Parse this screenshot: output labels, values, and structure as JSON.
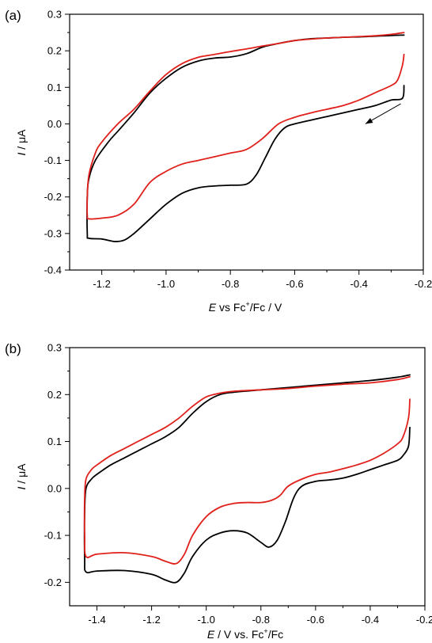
{
  "chart_data": [
    {
      "type": "line",
      "panel_label": "(a)",
      "xlabel_italic": "E",
      "xlabel_a": " vs Fc",
      "xlabel_sup": "+",
      "xlabel_b": "/Fc / V",
      "ylabel_italic": "I",
      "ylabel_rest": " / μA",
      "xlim": [
        -1.3,
        -0.2
      ],
      "ylim": [
        -0.4,
        0.3
      ],
      "x_ticks": [
        -1.2,
        -1.0,
        -0.8,
        -0.6,
        -0.4,
        -0.2
      ],
      "x_tick_labels": [
        "-1.2",
        "-1.0",
        "-0.8",
        "-0.6",
        "-0.4",
        "-0.2"
      ],
      "y_ticks": [
        0.3,
        0.2,
        0.1,
        0.0,
        -0.1,
        -0.2,
        -0.3,
        -0.4
      ],
      "y_tick_labels": [
        "0.3",
        "0.2",
        "0.1",
        "0.0",
        "-0.1",
        "-0.2",
        "-0.3",
        "-0.4"
      ],
      "arrow": {
        "from": [
          -0.27,
          0.055
        ],
        "to": [
          -0.38,
          0.0
        ]
      },
      "series": [
        {
          "color": "#000000",
          "points": [
            [
              -0.26,
              0.105
            ],
            [
              -0.265,
              0.07
            ],
            [
              -0.3,
              0.065
            ],
            [
              -0.35,
              0.05
            ],
            [
              -0.4,
              0.04
            ],
            [
              -0.45,
              0.03
            ],
            [
              -0.5,
              0.02
            ],
            [
              -0.55,
              0.01
            ],
            [
              -0.6,
              0.0
            ],
            [
              -0.63,
              -0.01
            ],
            [
              -0.66,
              -0.04
            ],
            [
              -0.69,
              -0.09
            ],
            [
              -0.72,
              -0.14
            ],
            [
              -0.75,
              -0.165
            ],
            [
              -0.8,
              -0.168
            ],
            [
              -0.85,
              -0.17
            ],
            [
              -0.9,
              -0.175
            ],
            [
              -0.95,
              -0.19
            ],
            [
              -1.0,
              -0.22
            ],
            [
              -1.05,
              -0.26
            ],
            [
              -1.1,
              -0.3
            ],
            [
              -1.13,
              -0.318
            ],
            [
              -1.16,
              -0.322
            ],
            [
              -1.2,
              -0.315
            ],
            [
              -1.24,
              -0.313
            ],
            [
              -1.245,
              -0.3
            ],
            [
              -1.245,
              -0.2
            ],
            [
              -1.24,
              -0.15
            ],
            [
              -1.22,
              -0.1
            ],
            [
              -1.18,
              -0.05
            ],
            [
              -1.15,
              -0.02
            ],
            [
              -1.1,
              0.03
            ],
            [
              -1.05,
              0.085
            ],
            [
              -1.0,
              0.125
            ],
            [
              -0.95,
              0.155
            ],
            [
              -0.9,
              0.172
            ],
            [
              -0.85,
              0.18
            ],
            [
              -0.8,
              0.183
            ],
            [
              -0.75,
              0.192
            ],
            [
              -0.7,
              0.21
            ],
            [
              -0.65,
              0.22
            ],
            [
              -0.6,
              0.228
            ],
            [
              -0.55,
              0.233
            ],
            [
              -0.5,
              0.235
            ],
            [
              -0.45,
              0.237
            ],
            [
              -0.4,
              0.238
            ],
            [
              -0.35,
              0.24
            ],
            [
              -0.3,
              0.242
            ],
            [
              -0.26,
              0.243
            ]
          ]
        },
        {
          "color": "#e0201b",
          "points": [
            [
              -0.26,
              0.19
            ],
            [
              -0.265,
              0.16
            ],
            [
              -0.28,
              0.12
            ],
            [
              -0.3,
              0.105
            ],
            [
              -0.35,
              0.085
            ],
            [
              -0.4,
              0.065
            ],
            [
              -0.45,
              0.05
            ],
            [
              -0.5,
              0.04
            ],
            [
              -0.55,
              0.03
            ],
            [
              -0.6,
              0.018
            ],
            [
              -0.65,
              0.0
            ],
            [
              -0.7,
              -0.04
            ],
            [
              -0.75,
              -0.07
            ],
            [
              -0.8,
              -0.08
            ],
            [
              -0.85,
              -0.09
            ],
            [
              -0.9,
              -0.1
            ],
            [
              -0.95,
              -0.11
            ],
            [
              -1.0,
              -0.13
            ],
            [
              -1.05,
              -0.16
            ],
            [
              -1.1,
              -0.22
            ],
            [
              -1.15,
              -0.25
            ],
            [
              -1.2,
              -0.258
            ],
            [
              -1.24,
              -0.26
            ],
            [
              -1.245,
              -0.25
            ],
            [
              -1.245,
              -0.2
            ],
            [
              -1.24,
              -0.14
            ],
            [
              -1.22,
              -0.08
            ],
            [
              -1.2,
              -0.05
            ],
            [
              -1.15,
              0.0
            ],
            [
              -1.1,
              0.04
            ],
            [
              -1.05,
              0.09
            ],
            [
              -1.0,
              0.135
            ],
            [
              -0.95,
              0.165
            ],
            [
              -0.9,
              0.182
            ],
            [
              -0.85,
              0.19
            ],
            [
              -0.8,
              0.198
            ],
            [
              -0.75,
              0.205
            ],
            [
              -0.7,
              0.213
            ],
            [
              -0.65,
              0.22
            ],
            [
              -0.6,
              0.228
            ],
            [
              -0.55,
              0.232
            ],
            [
              -0.5,
              0.235
            ],
            [
              -0.45,
              0.237
            ],
            [
              -0.4,
              0.239
            ],
            [
              -0.35,
              0.241
            ],
            [
              -0.3,
              0.245
            ],
            [
              -0.26,
              0.25
            ]
          ]
        }
      ]
    },
    {
      "type": "line",
      "panel_label": "(b)",
      "xlabel_italic": "E",
      "xlabel_a": " / V vs. Fc",
      "xlabel_sup": "+",
      "xlabel_b": "/Fc",
      "ylabel_italic": "I",
      "ylabel_rest": " / μA",
      "xlim": [
        -1.5,
        -0.2
      ],
      "ylim": [
        -0.25,
        0.3
      ],
      "x_ticks": [
        -1.4,
        -1.2,
        -1.0,
        -0.8,
        -0.6,
        -0.4,
        -0.2
      ],
      "x_tick_labels": [
        "-1.4",
        "-1.2",
        "-1.0",
        "-0.8",
        "-0.6",
        "-0.4",
        "-0.2"
      ],
      "y_ticks": [
        0.3,
        0.2,
        0.1,
        0.0,
        -0.1,
        -0.2
      ],
      "y_tick_labels": [
        "0.3",
        "0.2",
        "0.1",
        "0.0",
        "-0.1",
        "-0.2"
      ],
      "series": [
        {
          "color": "#000000",
          "points": [
            [
              -0.255,
              0.13
            ],
            [
              -0.26,
              0.09
            ],
            [
              -0.28,
              0.07
            ],
            [
              -0.3,
              0.06
            ],
            [
              -0.35,
              0.05
            ],
            [
              -0.4,
              0.04
            ],
            [
              -0.45,
              0.03
            ],
            [
              -0.5,
              0.022
            ],
            [
              -0.55,
              0.018
            ],
            [
              -0.6,
              0.015
            ],
            [
              -0.65,
              0.005
            ],
            [
              -0.68,
              -0.02
            ],
            [
              -0.71,
              -0.07
            ],
            [
              -0.74,
              -0.11
            ],
            [
              -0.77,
              -0.125
            ],
            [
              -0.8,
              -0.115
            ],
            [
              -0.85,
              -0.095
            ],
            [
              -0.9,
              -0.09
            ],
            [
              -0.95,
              -0.095
            ],
            [
              -1.0,
              -0.11
            ],
            [
              -1.05,
              -0.145
            ],
            [
              -1.08,
              -0.18
            ],
            [
              -1.11,
              -0.2
            ],
            [
              -1.15,
              -0.195
            ],
            [
              -1.2,
              -0.183
            ],
            [
              -1.3,
              -0.175
            ],
            [
              -1.4,
              -0.176
            ],
            [
              -1.44,
              -0.178
            ],
            [
              -1.445,
              -0.15
            ],
            [
              -1.445,
              -0.05
            ],
            [
              -1.44,
              0.0
            ],
            [
              -1.42,
              0.02
            ],
            [
              -1.4,
              0.03
            ],
            [
              -1.35,
              0.05
            ],
            [
              -1.3,
              0.065
            ],
            [
              -1.25,
              0.08
            ],
            [
              -1.2,
              0.095
            ],
            [
              -1.15,
              0.11
            ],
            [
              -1.1,
              0.13
            ],
            [
              -1.05,
              0.16
            ],
            [
              -1.0,
              0.185
            ],
            [
              -0.95,
              0.2
            ],
            [
              -0.9,
              0.205
            ],
            [
              -0.8,
              0.21
            ],
            [
              -0.7,
              0.215
            ],
            [
              -0.6,
              0.22
            ],
            [
              -0.5,
              0.225
            ],
            [
              -0.4,
              0.23
            ],
            [
              -0.3,
              0.237
            ],
            [
              -0.255,
              0.242
            ]
          ]
        },
        {
          "color": "#e0201b",
          "points": [
            [
              -0.255,
              0.19
            ],
            [
              -0.26,
              0.15
            ],
            [
              -0.28,
              0.11
            ],
            [
              -0.3,
              0.095
            ],
            [
              -0.35,
              0.075
            ],
            [
              -0.4,
              0.06
            ],
            [
              -0.45,
              0.05
            ],
            [
              -0.5,
              0.042
            ],
            [
              -0.55,
              0.035
            ],
            [
              -0.6,
              0.03
            ],
            [
              -0.65,
              0.02
            ],
            [
              -0.7,
              0.005
            ],
            [
              -0.73,
              -0.015
            ],
            [
              -0.76,
              -0.025
            ],
            [
              -0.8,
              -0.03
            ],
            [
              -0.85,
              -0.03
            ],
            [
              -0.9,
              -0.032
            ],
            [
              -0.95,
              -0.04
            ],
            [
              -1.0,
              -0.06
            ],
            [
              -1.05,
              -0.1
            ],
            [
              -1.08,
              -0.14
            ],
            [
              -1.11,
              -0.16
            ],
            [
              -1.15,
              -0.155
            ],
            [
              -1.2,
              -0.145
            ],
            [
              -1.3,
              -0.137
            ],
            [
              -1.4,
              -0.14
            ],
            [
              -1.44,
              -0.145
            ],
            [
              -1.445,
              -0.1
            ],
            [
              -1.445,
              -0.02
            ],
            [
              -1.44,
              0.02
            ],
            [
              -1.42,
              0.04
            ],
            [
              -1.4,
              0.05
            ],
            [
              -1.35,
              0.07
            ],
            [
              -1.3,
              0.085
            ],
            [
              -1.25,
              0.1
            ],
            [
              -1.2,
              0.115
            ],
            [
              -1.15,
              0.13
            ],
            [
              -1.1,
              0.15
            ],
            [
              -1.05,
              0.175
            ],
            [
              -1.0,
              0.195
            ],
            [
              -0.95,
              0.203
            ],
            [
              -0.9,
              0.207
            ],
            [
              -0.8,
              0.21
            ],
            [
              -0.7,
              0.213
            ],
            [
              -0.6,
              0.218
            ],
            [
              -0.5,
              0.222
            ],
            [
              -0.4,
              0.225
            ],
            [
              -0.3,
              0.232
            ],
            [
              -0.255,
              0.238
            ]
          ]
        }
      ]
    }
  ]
}
